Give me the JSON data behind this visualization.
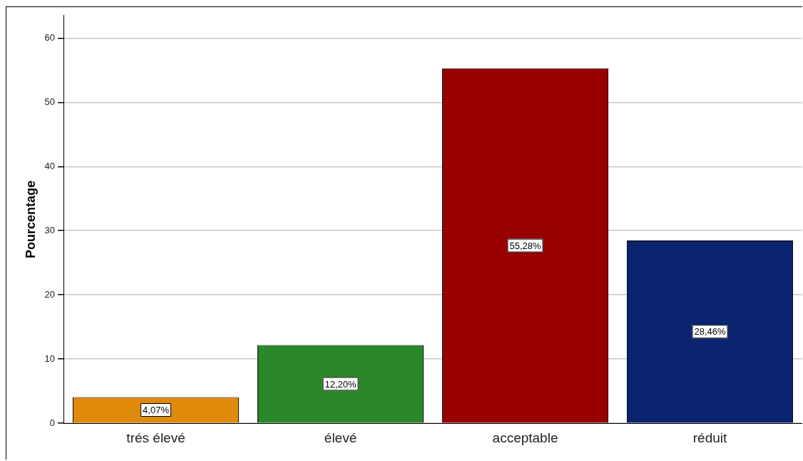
{
  "chart_data": {
    "type": "bar",
    "ylabel": "Pourcentage",
    "categories": [
      "trés élevé",
      "élevé",
      "acceptable",
      "réduit"
    ],
    "values": [
      4.07,
      12.2,
      55.28,
      28.46
    ],
    "colors": [
      "#e08a0b",
      "#2a882a",
      "#990000",
      "#0b2470"
    ],
    "value_labels": [
      "4,07%",
      "12,20%",
      "55,28%",
      "28,46%"
    ],
    "ylim": [
      0,
      63.5
    ],
    "yticks": [
      0,
      10,
      20,
      30,
      40,
      50,
      60
    ],
    "grid": "y",
    "legend": false
  }
}
